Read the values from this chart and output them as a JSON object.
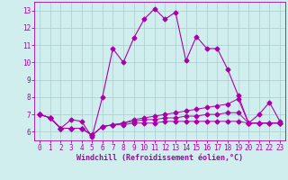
{
  "xlabel": "Windchill (Refroidissement éolien,°C)",
  "x": [
    0,
    1,
    2,
    3,
    4,
    5,
    6,
    7,
    8,
    9,
    10,
    11,
    12,
    13,
    14,
    15,
    16,
    17,
    18,
    19,
    20,
    21,
    22,
    23
  ],
  "line1": [
    7.0,
    6.8,
    6.2,
    6.7,
    6.6,
    5.7,
    8.0,
    10.8,
    10.0,
    11.4,
    12.5,
    13.1,
    12.5,
    12.9,
    10.1,
    11.5,
    10.8,
    10.8,
    9.6,
    8.1,
    6.5,
    7.0,
    7.7,
    6.6
  ],
  "line2": [
    7.0,
    6.8,
    6.2,
    6.2,
    6.2,
    5.8,
    6.3,
    6.4,
    6.5,
    6.7,
    6.8,
    6.9,
    7.0,
    7.1,
    7.2,
    7.3,
    7.4,
    7.5,
    7.6,
    7.9,
    6.5,
    6.5,
    6.5,
    6.5
  ],
  "line3": [
    7.0,
    6.8,
    6.2,
    6.2,
    6.2,
    5.8,
    6.3,
    6.4,
    6.5,
    6.6,
    6.7,
    6.7,
    6.8,
    6.8,
    6.9,
    6.9,
    7.0,
    7.0,
    7.1,
    7.1,
    6.5,
    6.5,
    6.5,
    6.5
  ],
  "line4": [
    7.0,
    6.8,
    6.2,
    6.2,
    6.2,
    5.8,
    6.3,
    6.4,
    6.4,
    6.5,
    6.5,
    6.5,
    6.6,
    6.6,
    6.6,
    6.6,
    6.6,
    6.6,
    6.6,
    6.6,
    6.5,
    6.5,
    6.5,
    6.5
  ],
  "line_color": "#AA00AA",
  "bg_color": "#D0EEEE",
  "grid_color": "#AACCCC",
  "ylim": [
    5.5,
    13.5
  ],
  "xlim": [
    -0.5,
    23.5
  ],
  "yticks": [
    6,
    7,
    8,
    9,
    10,
    11,
    12,
    13
  ],
  "xticks": [
    0,
    1,
    2,
    3,
    4,
    5,
    6,
    7,
    8,
    9,
    10,
    11,
    12,
    13,
    14,
    15,
    16,
    17,
    18,
    19,
    20,
    21,
    22,
    23
  ],
  "tick_fontsize": 5.5,
  "xlabel_fontsize": 6.0,
  "marker": "D",
  "markersize": 2.5
}
